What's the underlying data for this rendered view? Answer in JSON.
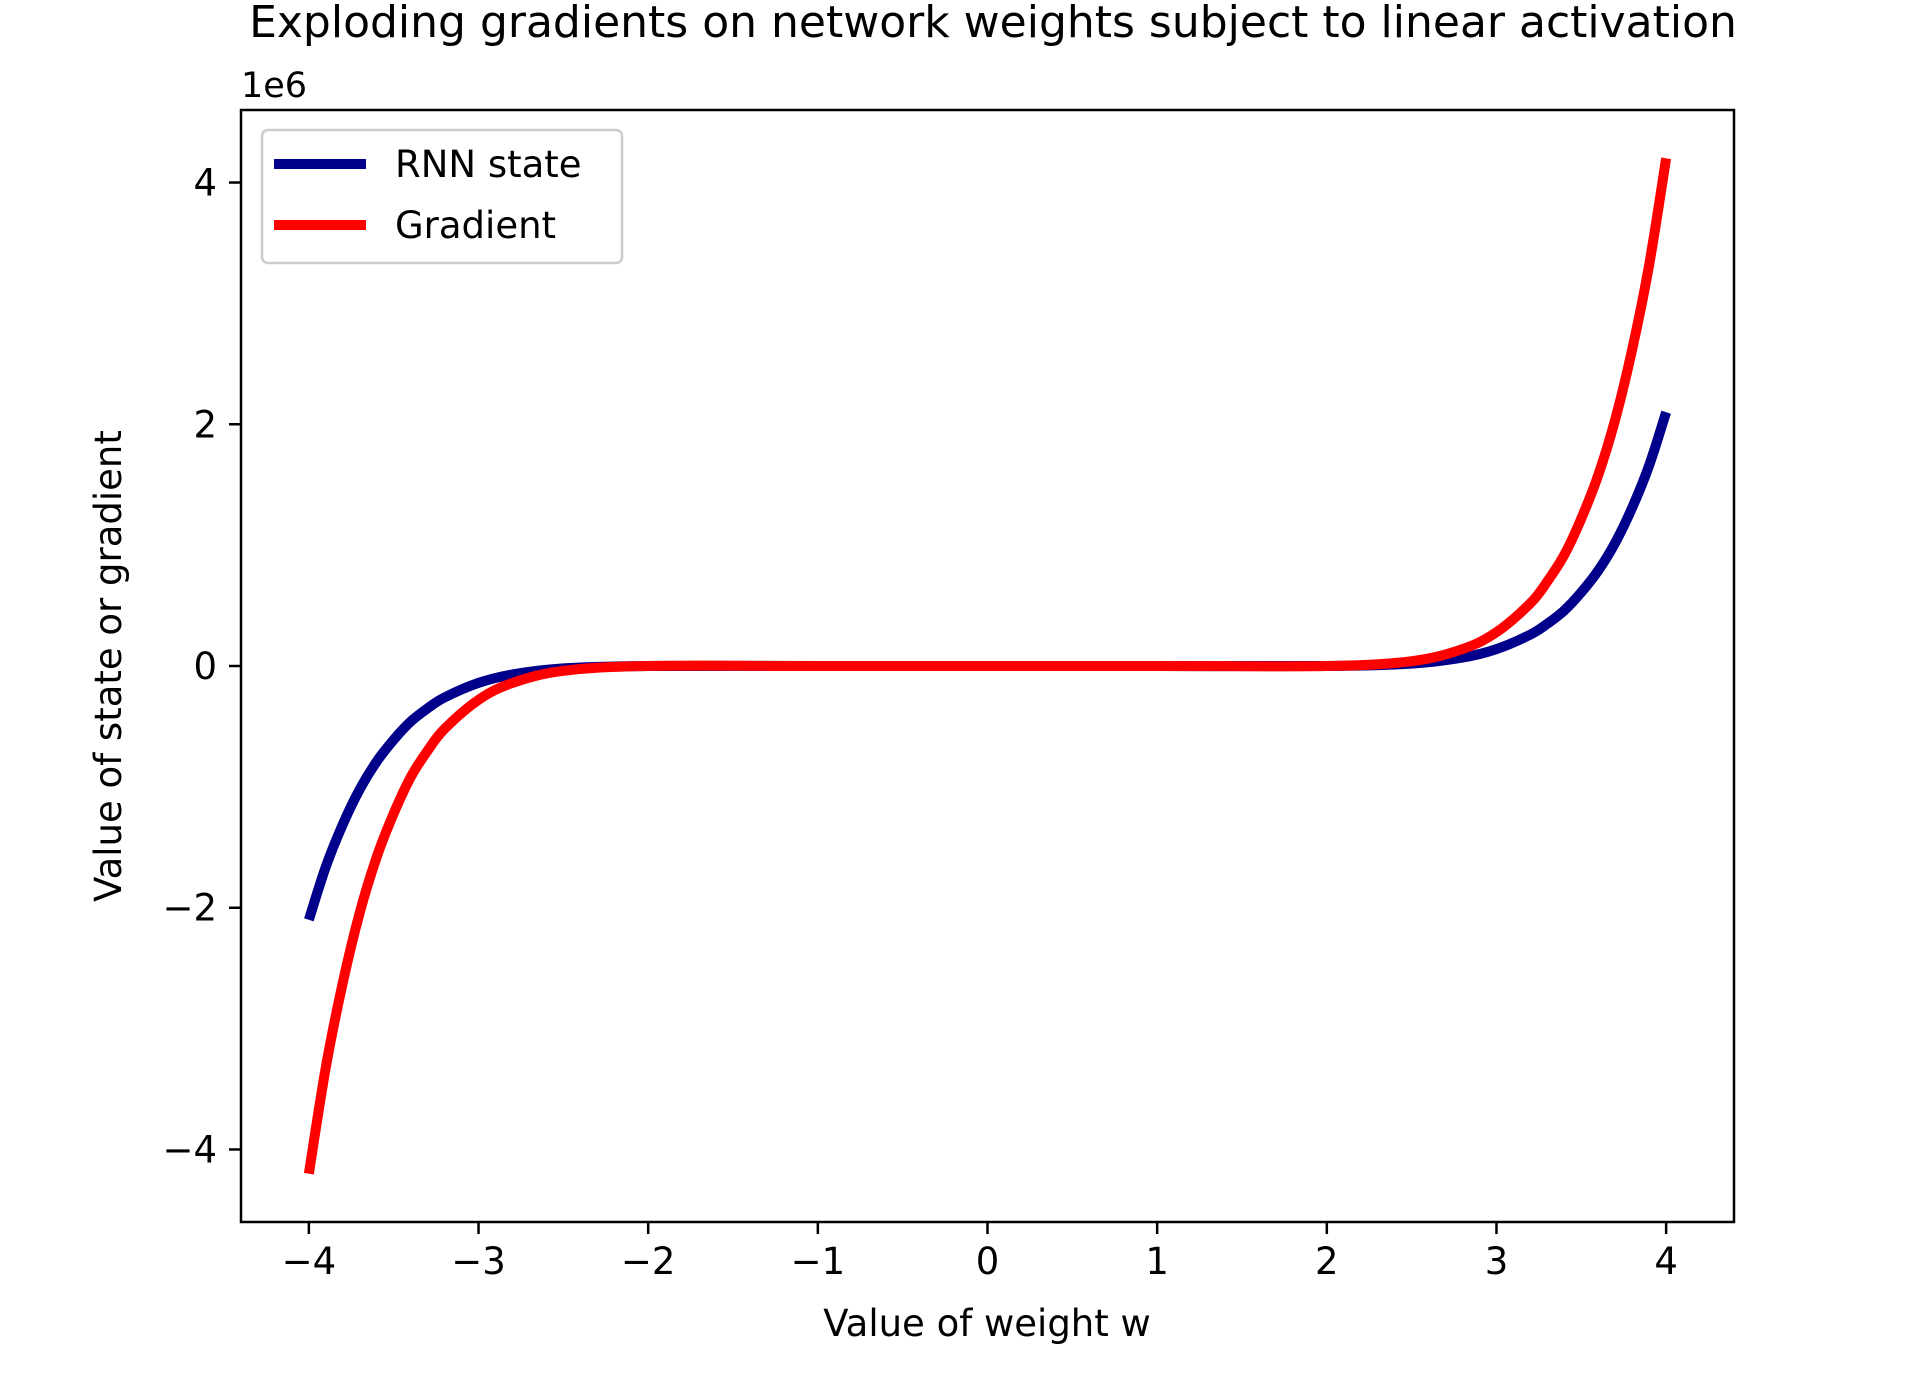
{
  "chart_data": {
    "type": "line",
    "title": "Exploding gradients on network weights subject to linear activation",
    "xlabel": "Value of weight w",
    "ylabel": "Value of state or gradient",
    "y_offset_label": "1e6",
    "y_scale_factor": 1000000,
    "xlim": [
      -4.4,
      4.4
    ],
    "ylim": [
      -4.6,
      4.6
    ],
    "x_ticks": [
      -4,
      -3,
      -2,
      -1,
      0,
      1,
      2,
      3,
      4
    ],
    "x_tick_labels": [
      "−4",
      "−3",
      "−2",
      "−1",
      "0",
      "1",
      "2",
      "3",
      "4"
    ],
    "y_ticks": [
      -4,
      -2,
      0,
      2,
      4
    ],
    "y_tick_labels": [
      "−4",
      "−2",
      "0",
      "2",
      "4"
    ],
    "grid": false,
    "legend_position": "top-left",
    "x": [
      -4.0,
      -3.9,
      -3.8,
      -3.7,
      -3.6,
      -3.5,
      -3.4,
      -3.3,
      -3.2,
      -3.0,
      -2.8,
      -2.5,
      -2.0,
      -1.0,
      0.0,
      1.0,
      2.0,
      2.5,
      2.8,
      3.0,
      3.2,
      3.3,
      3.4,
      3.5,
      3.6,
      3.7,
      3.8,
      3.9,
      4.0
    ],
    "series": [
      {
        "name": "RNN state",
        "color": "#00008b",
        "values": [
          -2.1,
          -1.66,
          -1.31,
          -1.02,
          -0.79,
          -0.61,
          -0.46,
          -0.35,
          -0.26,
          -0.14,
          -0.07,
          -0.02,
          0.0,
          0.0,
          0.0,
          0.0,
          0.0,
          0.02,
          0.07,
          0.14,
          0.26,
          0.35,
          0.46,
          0.61,
          0.79,
          1.02,
          1.31,
          1.66,
          2.1
        ]
      },
      {
        "name": "Gradient",
        "color": "#ff0000",
        "values": [
          -4.2,
          -3.32,
          -2.62,
          -2.04,
          -1.58,
          -1.22,
          -0.92,
          -0.7,
          -0.52,
          -0.28,
          -0.14,
          -0.04,
          0.0,
          0.0,
          0.0,
          0.0,
          0.0,
          0.04,
          0.14,
          0.28,
          0.52,
          0.7,
          0.92,
          1.22,
          1.58,
          2.04,
          2.62,
          3.32,
          4.2
        ]
      }
    ]
  }
}
